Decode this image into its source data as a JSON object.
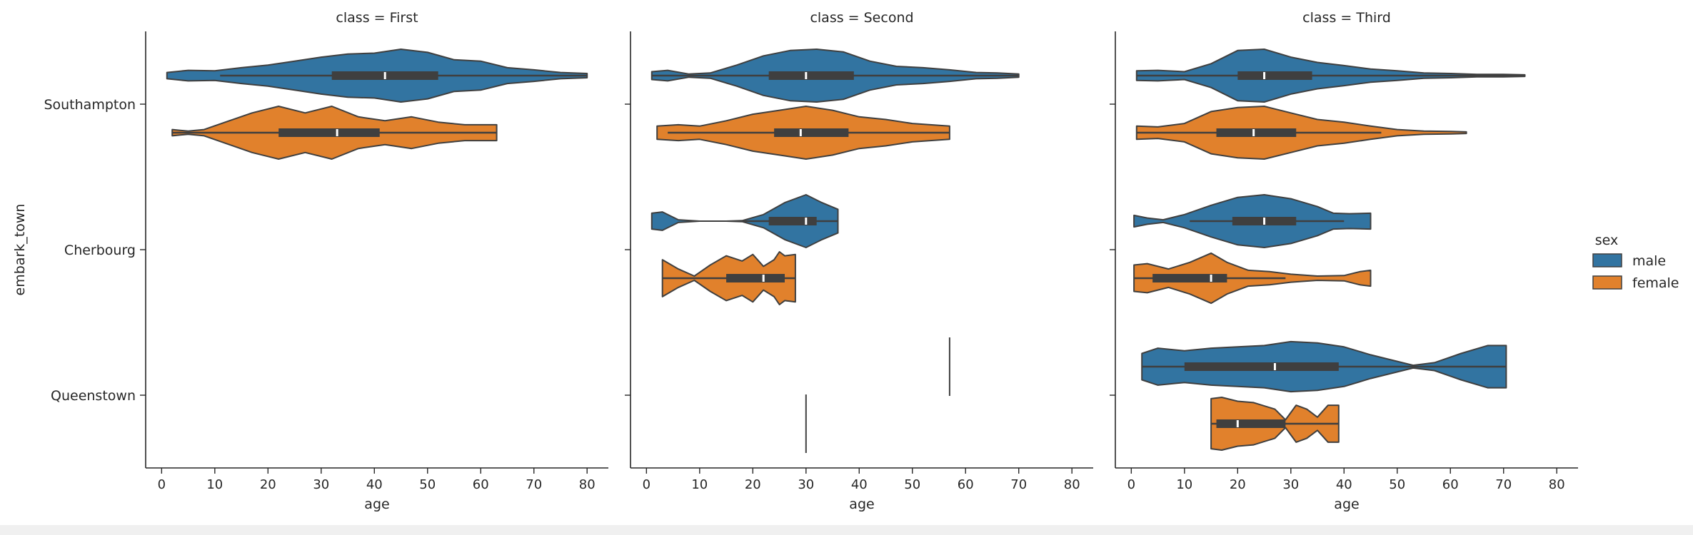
{
  "chart_data": {
    "type": "violin",
    "x_variable": "age",
    "y_variable": "embark_town",
    "hue_variable": "sex",
    "categories": [
      "Southampton",
      "Cherbourg",
      "Queenstown"
    ],
    "hue_levels": [
      "male",
      "female"
    ],
    "colors": {
      "male": "#3274a1",
      "female": "#e1812c",
      "edge": "#3f3f3f",
      "box": "#3f3f3f",
      "median": "#ffffff"
    },
    "xlim": [
      -3,
      84
    ],
    "xticks": [
      0,
      10,
      20,
      30,
      40,
      50,
      60,
      70,
      80
    ],
    "xlabel": "age",
    "ylabel": "embark_town",
    "legend": {
      "title": "sex",
      "entries": [
        "male",
        "female"
      ],
      "placement": "right"
    },
    "grid": false,
    "panels": [
      {
        "title": "class = First",
        "groups": [
          {
            "category": "Southampton",
            "hue": "male",
            "min": 1,
            "q1": 32,
            "median": 42,
            "q3": 52,
            "max": 80,
            "whisker_low": 11,
            "whisker_high": 80,
            "density": [
              [
                1,
                0.12
              ],
              [
                5,
                0.2
              ],
              [
                10,
                0.18
              ],
              [
                15,
                0.3
              ],
              [
                20,
                0.4
              ],
              [
                25,
                0.55
              ],
              [
                30,
                0.7
              ],
              [
                35,
                0.82
              ],
              [
                40,
                0.85
              ],
              [
                45,
                1.0
              ],
              [
                50,
                0.88
              ],
              [
                55,
                0.6
              ],
              [
                60,
                0.55
              ],
              [
                65,
                0.3
              ],
              [
                70,
                0.22
              ],
              [
                75,
                0.12
              ],
              [
                80,
                0.08
              ]
            ]
          },
          {
            "category": "Southampton",
            "hue": "female",
            "min": 2,
            "q1": 22,
            "median": 33,
            "q3": 41,
            "max": 63,
            "whisker_low": 2,
            "whisker_high": 63,
            "density": [
              [
                2,
                0.12
              ],
              [
                5,
                0.06
              ],
              [
                8,
                0.12
              ],
              [
                12,
                0.4
              ],
              [
                17,
                0.75
              ],
              [
                22,
                1.0
              ],
              [
                27,
                0.75
              ],
              [
                32,
                1.0
              ],
              [
                37,
                0.6
              ],
              [
                42,
                0.45
              ],
              [
                47,
                0.6
              ],
              [
                52,
                0.4
              ],
              [
                57,
                0.3
              ],
              [
                63,
                0.3
              ]
            ]
          }
        ]
      },
      {
        "title": "class = Second",
        "groups": [
          {
            "category": "Southampton",
            "hue": "male",
            "min": 1,
            "q1": 23,
            "median": 30,
            "q3": 39,
            "max": 70,
            "whisker_low": 1,
            "whisker_high": 70,
            "density": [
              [
                1,
                0.15
              ],
              [
                4,
                0.2
              ],
              [
                8,
                0.06
              ],
              [
                12,
                0.1
              ],
              [
                17,
                0.4
              ],
              [
                22,
                0.75
              ],
              [
                27,
                0.95
              ],
              [
                32,
                1.0
              ],
              [
                37,
                0.9
              ],
              [
                42,
                0.55
              ],
              [
                47,
                0.35
              ],
              [
                52,
                0.3
              ],
              [
                57,
                0.22
              ],
              [
                62,
                0.12
              ],
              [
                66,
                0.1
              ],
              [
                70,
                0.06
              ]
            ]
          },
          {
            "category": "Southampton",
            "hue": "female",
            "min": 2,
            "q1": 24,
            "median": 29,
            "q3": 38,
            "max": 57,
            "whisker_low": 4,
            "whisker_high": 57,
            "density": [
              [
                2,
                0.25
              ],
              [
                6,
                0.3
              ],
              [
                10,
                0.25
              ],
              [
                15,
                0.45
              ],
              [
                20,
                0.7
              ],
              [
                25,
                0.85
              ],
              [
                30,
                1.0
              ],
              [
                35,
                0.85
              ],
              [
                40,
                0.6
              ],
              [
                45,
                0.5
              ],
              [
                50,
                0.35
              ],
              [
                57,
                0.25
              ]
            ]
          },
          {
            "category": "Cherbourg",
            "hue": "male",
            "min": 1,
            "q1": 23,
            "median": 30,
            "q3": 32,
            "max": 36,
            "whisker_low": 18,
            "whisker_high": 36,
            "density": [
              [
                1,
                0.3
              ],
              [
                3,
                0.35
              ],
              [
                6,
                0.05
              ],
              [
                10,
                0.0
              ],
              [
                15,
                0.0
              ],
              [
                18,
                0.02
              ],
              [
                22,
                0.25
              ],
              [
                26,
                0.7
              ],
              [
                30,
                1.0
              ],
              [
                33,
                0.7
              ],
              [
                36,
                0.45
              ]
            ]
          },
          {
            "category": "Cherbourg",
            "hue": "female",
            "min": 3,
            "q1": 15,
            "median": 22,
            "q3": 26,
            "max": 28,
            "whisker_low": 3,
            "whisker_high": 28,
            "density": [
              [
                3,
                0.7
              ],
              [
                6,
                0.35
              ],
              [
                9,
                0.08
              ],
              [
                12,
                0.5
              ],
              [
                15,
                0.85
              ],
              [
                18,
                0.65
              ],
              [
                20,
                0.9
              ],
              [
                22,
                0.45
              ],
              [
                24,
                0.7
              ],
              [
                25,
                1.0
              ],
              [
                26,
                0.85
              ],
              [
                28,
                0.9
              ]
            ]
          },
          {
            "category": "Queenstown",
            "hue": "male",
            "min": 57,
            "q1": 57,
            "median": 57,
            "q3": 57,
            "max": 57,
            "whisker_low": 57,
            "whisker_high": 57,
            "density": []
          },
          {
            "category": "Queenstown",
            "hue": "female",
            "min": 30,
            "q1": 30,
            "median": 30,
            "q3": 30,
            "max": 30,
            "whisker_low": 30,
            "whisker_high": 30,
            "density": []
          }
        ]
      },
      {
        "title": "class = Third",
        "groups": [
          {
            "category": "Southampton",
            "hue": "male",
            "min": 1,
            "q1": 20,
            "median": 25,
            "q3": 34,
            "max": 74,
            "whisker_low": 1,
            "whisker_high": 74,
            "density": [
              [
                1,
                0.18
              ],
              [
                5,
                0.2
              ],
              [
                10,
                0.15
              ],
              [
                15,
                0.45
              ],
              [
                20,
                0.95
              ],
              [
                25,
                1.0
              ],
              [
                30,
                0.7
              ],
              [
                35,
                0.5
              ],
              [
                40,
                0.38
              ],
              [
                45,
                0.25
              ],
              [
                50,
                0.18
              ],
              [
                55,
                0.1
              ],
              [
                60,
                0.08
              ],
              [
                65,
                0.05
              ],
              [
                70,
                0.05
              ],
              [
                74,
                0.03
              ]
            ]
          },
          {
            "category": "Southampton",
            "hue": "female",
            "min": 1,
            "q1": 16,
            "median": 23,
            "q3": 31,
            "max": 63,
            "whisker_low": 1,
            "whisker_high": 47,
            "density": [
              [
                1,
                0.25
              ],
              [
                5,
                0.22
              ],
              [
                10,
                0.35
              ],
              [
                15,
                0.8
              ],
              [
                20,
                0.95
              ],
              [
                25,
                1.0
              ],
              [
                30,
                0.75
              ],
              [
                35,
                0.5
              ],
              [
                40,
                0.4
              ],
              [
                45,
                0.25
              ],
              [
                50,
                0.12
              ],
              [
                55,
                0.06
              ],
              [
                60,
                0.05
              ],
              [
                63,
                0.03
              ]
            ]
          },
          {
            "category": "Cherbourg",
            "hue": "male",
            "min": 0.5,
            "q1": 19,
            "median": 25,
            "q3": 31,
            "max": 45,
            "whisker_low": 11,
            "whisker_high": 40,
            "density": [
              [
                0.5,
                0.22
              ],
              [
                3,
                0.12
              ],
              [
                6,
                0.05
              ],
              [
                10,
                0.25
              ],
              [
                15,
                0.6
              ],
              [
                20,
                0.9
              ],
              [
                25,
                1.0
              ],
              [
                30,
                0.85
              ],
              [
                35,
                0.55
              ],
              [
                38,
                0.3
              ],
              [
                41,
                0.28
              ],
              [
                45,
                0.3
              ]
            ]
          },
          {
            "category": "Cherbourg",
            "hue": "female",
            "min": 0.5,
            "q1": 4,
            "median": 15,
            "q3": 18,
            "max": 45,
            "whisker_low": 0.5,
            "whisker_high": 29,
            "density": [
              [
                0.5,
                0.5
              ],
              [
                3,
                0.55
              ],
              [
                7,
                0.35
              ],
              [
                11,
                0.6
              ],
              [
                15,
                0.95
              ],
              [
                18,
                0.6
              ],
              [
                22,
                0.3
              ],
              [
                26,
                0.25
              ],
              [
                30,
                0.15
              ],
              [
                35,
                0.08
              ],
              [
                40,
                0.1
              ],
              [
                43,
                0.25
              ],
              [
                45,
                0.3
              ]
            ]
          },
          {
            "category": "Queenstown",
            "hue": "male",
            "min": 2,
            "q1": 10,
            "median": 27,
            "q3": 39,
            "max": 70.5,
            "whisker_low": 2,
            "whisker_high": 70.5,
            "density": [
              [
                2,
                0.5
              ],
              [
                5,
                0.7
              ],
              [
                10,
                0.6
              ],
              [
                15,
                0.7
              ],
              [
                20,
                0.75
              ],
              [
                25,
                0.8
              ],
              [
                30,
                0.95
              ],
              [
                35,
                0.9
              ],
              [
                40,
                0.75
              ],
              [
                45,
                0.45
              ],
              [
                50,
                0.2
              ],
              [
                53,
                0.05
              ],
              [
                57,
                0.15
              ],
              [
                62,
                0.5
              ],
              [
                67,
                0.8
              ],
              [
                70.5,
                0.8
              ]
            ]
          },
          {
            "category": "Queenstown",
            "hue": "female",
            "min": 15,
            "q1": 16,
            "median": 20,
            "q3": 29,
            "max": 39,
            "whisker_low": 15,
            "whisker_high": 39,
            "density": [
              [
                15,
                0.95
              ],
              [
                17,
                1.0
              ],
              [
                20,
                0.85
              ],
              [
                23,
                0.8
              ],
              [
                27,
                0.55
              ],
              [
                29,
                0.15
              ],
              [
                31,
                0.7
              ],
              [
                33,
                0.55
              ],
              [
                35,
                0.25
              ],
              [
                37,
                0.7
              ],
              [
                39,
                0.7
              ]
            ]
          }
        ]
      }
    ]
  }
}
